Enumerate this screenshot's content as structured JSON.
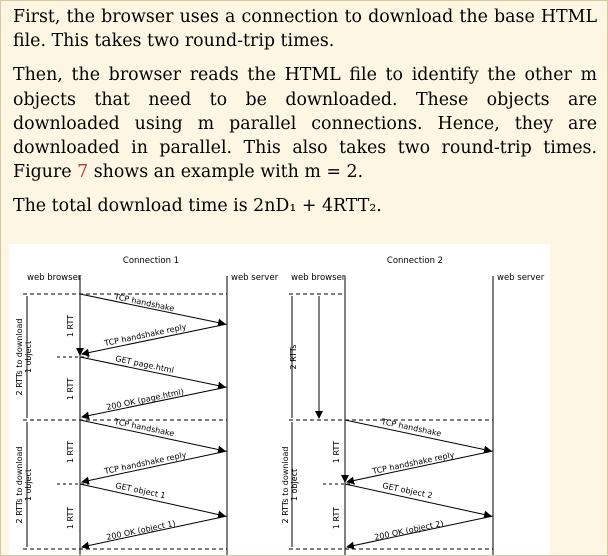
{
  "paragraphs": {
    "p1": "First, the browser uses a connection to download the base HTML file. This takes two round-trip times.",
    "p2_before_ref": "Then, the browser reads the HTML file to identify the other m objects that need to be downloaded. These objects are downloaded using m parallel connections. Hence, they are downloaded in parallel. This also takes two round-trip times. Figure ",
    "p2_ref": "7",
    "p2_after_ref": " shows an example with m = 2.",
    "p3": "The total download time is 2nD₁ + 4RTT₂."
  },
  "figure": {
    "connection1": {
      "title": "Connection 1",
      "left_label": "web browser",
      "right_label": "web server",
      "brace_outer_1": "2 RTTs to download 1 object",
      "brace_outer_2": "2 RTTs to download 1 object",
      "rtt_labels": [
        "1 RTT",
        "1 RTT",
        "1 RTT",
        "1 RTT"
      ],
      "messages": [
        "TCP handshake",
        "TCP handshake reply",
        "GET page.html",
        "200 OK (page.html)",
        "TCP handshake",
        "TCP handshake reply",
        "GET object 1",
        "200 OK (object 1)"
      ]
    },
    "connection2": {
      "title": "Connection 2",
      "left_label": "web browser",
      "right_label": "web server",
      "brace_outer_top": "2 RTTs",
      "brace_outer_bottom": "2 RTTs to download 1 object",
      "rtt_labels": [
        "1 RTT",
        "1 RTT"
      ],
      "messages": [
        "TCP handshake",
        "TCP handshake reply",
        "GET object 2",
        "200 OK (object 2)"
      ]
    }
  }
}
